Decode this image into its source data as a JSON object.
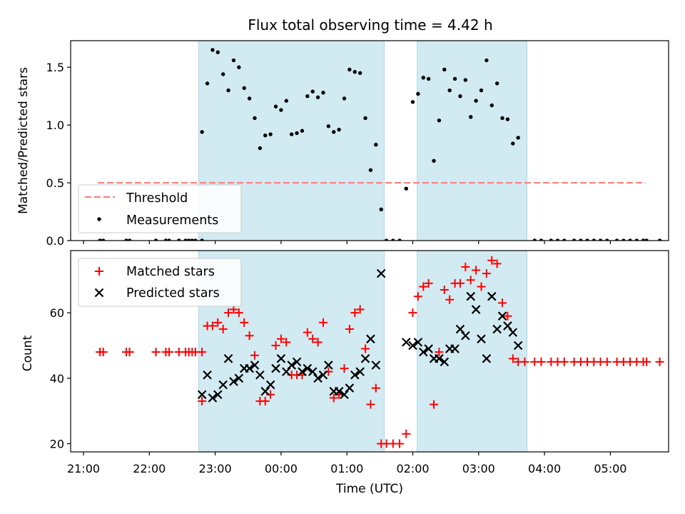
{
  "figure_title": "Flux total observing time = 4.42 h",
  "x_axis_label": "Time (UTC)",
  "x_tick_labels": [
    "21:00",
    "22:00",
    "23:00",
    "00:00",
    "01:00",
    "02:00",
    "03:00",
    "04:00",
    "05:00"
  ],
  "colors": {
    "shade": "#add8e6",
    "threshold": "#ff8080",
    "measurements": "#000000",
    "matched": "#ff0000",
    "predicted": "#000000"
  },
  "chart_data": [
    {
      "type": "scatter",
      "panel": "top",
      "ylabel": "Matched/Predicted stars",
      "ylim": [
        0,
        1.73
      ],
      "yticks": [
        0.0,
        0.5,
        1.0,
        1.5
      ],
      "ytick_labels": [
        "0.0",
        "0.5",
        "1.0",
        "1.5"
      ],
      "x_unit": "hours since 21:00 UTC",
      "shaded_intervals": [
        [
          "22:45",
          "01:34"
        ],
        [
          "02:04",
          "03:44"
        ]
      ],
      "threshold": {
        "name": "Threshold",
        "value": 0.5,
        "x_range": [
          "21:13",
          "05:32"
        ],
        "style": "dashed"
      },
      "legend_position": "lower-left",
      "series": [
        {
          "name": "Measurements",
          "points": [
            [
              0.25,
              0
            ],
            [
              0.3,
              0
            ],
            [
              0.65,
              0
            ],
            [
              0.7,
              0
            ],
            [
              1.1,
              0
            ],
            [
              1.25,
              0
            ],
            [
              1.3,
              0
            ],
            [
              1.45,
              0
            ],
            [
              1.55,
              0
            ],
            [
              1.6,
              0
            ],
            [
              1.65,
              0
            ],
            [
              1.7,
              0
            ],
            [
              1.8,
              0
            ],
            [
              1.8,
              0.94
            ],
            [
              1.88,
              1.36
            ],
            [
              1.96,
              1.65
            ],
            [
              2.04,
              1.63
            ],
            [
              2.12,
              1.44
            ],
            [
              2.2,
              1.3
            ],
            [
              2.28,
              1.56
            ],
            [
              2.36,
              1.5
            ],
            [
              2.44,
              1.32
            ],
            [
              2.52,
              1.23
            ],
            [
              2.6,
              1.06
            ],
            [
              2.68,
              0.8
            ],
            [
              2.76,
              0.91
            ],
            [
              2.84,
              0.92
            ],
            [
              2.92,
              1.16
            ],
            [
              3.0,
              1.13
            ],
            [
              3.08,
              1.21
            ],
            [
              3.16,
              0.92
            ],
            [
              3.24,
              0.93
            ],
            [
              3.32,
              0.95
            ],
            [
              3.4,
              1.25
            ],
            [
              3.48,
              1.29
            ],
            [
              3.56,
              1.24
            ],
            [
              3.64,
              1.28
            ],
            [
              3.72,
              0.99
            ],
            [
              3.8,
              0.94
            ],
            [
              3.88,
              0.96
            ],
            [
              3.96,
              1.23
            ],
            [
              4.04,
              1.48
            ],
            [
              4.12,
              1.46
            ],
            [
              4.2,
              1.45
            ],
            [
              4.28,
              1.06
            ],
            [
              4.36,
              0.61
            ],
            [
              4.44,
              0.83
            ],
            [
              4.52,
              0.27
            ],
            [
              4.6,
              0
            ],
            [
              4.7,
              0
            ],
            [
              4.8,
              0
            ],
            [
              4.9,
              0.45
            ],
            [
              5.0,
              1.2
            ],
            [
              5.08,
              1.27
            ],
            [
              5.16,
              1.41
            ],
            [
              5.24,
              1.4
            ],
            [
              5.32,
              0.69
            ],
            [
              5.4,
              1.04
            ],
            [
              5.48,
              1.48
            ],
            [
              5.56,
              1.3
            ],
            [
              5.64,
              1.4
            ],
            [
              5.72,
              1.25
            ],
            [
              5.8,
              1.39
            ],
            [
              5.88,
              1.07
            ],
            [
              5.96,
              1.21
            ],
            [
              6.04,
              1.3
            ],
            [
              6.12,
              1.56
            ],
            [
              6.2,
              1.17
            ],
            [
              6.28,
              1.36
            ],
            [
              6.36,
              1.06
            ],
            [
              6.44,
              1.05
            ],
            [
              6.52,
              0.84
            ],
            [
              6.6,
              0.89
            ],
            [
              6.85,
              0
            ],
            [
              6.95,
              0
            ],
            [
              7.1,
              0
            ],
            [
              7.2,
              0
            ],
            [
              7.3,
              0
            ],
            [
              7.45,
              0
            ],
            [
              7.55,
              0
            ],
            [
              7.65,
              0
            ],
            [
              7.75,
              0
            ],
            [
              7.85,
              0
            ],
            [
              7.95,
              0
            ],
            [
              8.1,
              0
            ],
            [
              8.2,
              0
            ],
            [
              8.3,
              0
            ],
            [
              8.4,
              0
            ],
            [
              8.5,
              0
            ],
            [
              8.55,
              0
            ],
            [
              8.75,
              0
            ]
          ]
        }
      ]
    },
    {
      "type": "scatter",
      "panel": "bottom",
      "ylabel": "Count",
      "ylim": [
        17.5,
        79
      ],
      "yticks": [
        20,
        40,
        60
      ],
      "ytick_labels": [
        "20",
        "40",
        "60"
      ],
      "x_unit": "hours since 21:00 UTC",
      "shaded_intervals": [
        [
          "22:45",
          "01:34"
        ],
        [
          "02:04",
          "03:44"
        ]
      ],
      "legend_position": "upper-left",
      "series": [
        {
          "name": "Matched stars",
          "marker": "plus",
          "points": [
            [
              0.25,
              48
            ],
            [
              0.3,
              48
            ],
            [
              0.65,
              48
            ],
            [
              0.7,
              48
            ],
            [
              1.1,
              48
            ],
            [
              1.25,
              48
            ],
            [
              1.3,
              48
            ],
            [
              1.45,
              48
            ],
            [
              1.55,
              48
            ],
            [
              1.6,
              48
            ],
            [
              1.65,
              48
            ],
            [
              1.7,
              48
            ],
            [
              1.8,
              48
            ],
            [
              1.8,
              33
            ],
            [
              1.88,
              56
            ],
            [
              1.96,
              56
            ],
            [
              2.04,
              57
            ],
            [
              2.12,
              55
            ],
            [
              2.2,
              60
            ],
            [
              2.28,
              61
            ],
            [
              2.36,
              60
            ],
            [
              2.44,
              57
            ],
            [
              2.52,
              53
            ],
            [
              2.6,
              47
            ],
            [
              2.68,
              33
            ],
            [
              2.76,
              33
            ],
            [
              2.84,
              35
            ],
            [
              2.92,
              50
            ],
            [
              3.0,
              52
            ],
            [
              3.08,
              51
            ],
            [
              3.16,
              41
            ],
            [
              3.24,
              41
            ],
            [
              3.32,
              41
            ],
            [
              3.4,
              54
            ],
            [
              3.48,
              52
            ],
            [
              3.56,
              51
            ],
            [
              3.64,
              57
            ],
            [
              3.72,
              42
            ],
            [
              3.8,
              34
            ],
            [
              3.88,
              35
            ],
            [
              3.96,
              43
            ],
            [
              4.04,
              55
            ],
            [
              4.12,
              60
            ],
            [
              4.2,
              61
            ],
            [
              4.28,
              49
            ],
            [
              4.36,
              32
            ],
            [
              4.44,
              37
            ],
            [
              4.52,
              20
            ],
            [
              4.6,
              20
            ],
            [
              4.7,
              20
            ],
            [
              4.8,
              20
            ],
            [
              4.9,
              23
            ],
            [
              5.0,
              60
            ],
            [
              5.08,
              65
            ],
            [
              5.16,
              68
            ],
            [
              5.24,
              69
            ],
            [
              5.32,
              32
            ],
            [
              5.4,
              48
            ],
            [
              5.48,
              67
            ],
            [
              5.56,
              64
            ],
            [
              5.64,
              69
            ],
            [
              5.72,
              69
            ],
            [
              5.8,
              74
            ],
            [
              5.88,
              70
            ],
            [
              5.96,
              73
            ],
            [
              6.04,
              68
            ],
            [
              6.12,
              72
            ],
            [
              6.2,
              76
            ],
            [
              6.28,
              75
            ],
            [
              6.36,
              63
            ],
            [
              6.44,
              59
            ],
            [
              6.52,
              46
            ],
            [
              6.6,
              45
            ],
            [
              6.7,
              45
            ],
            [
              6.85,
              45
            ],
            [
              6.95,
              45
            ],
            [
              7.1,
              45
            ],
            [
              7.2,
              45
            ],
            [
              7.3,
              45
            ],
            [
              7.45,
              45
            ],
            [
              7.55,
              45
            ],
            [
              7.65,
              45
            ],
            [
              7.75,
              45
            ],
            [
              7.85,
              45
            ],
            [
              7.95,
              45
            ],
            [
              8.1,
              45
            ],
            [
              8.2,
              45
            ],
            [
              8.3,
              45
            ],
            [
              8.4,
              45
            ],
            [
              8.5,
              45
            ],
            [
              8.55,
              45
            ],
            [
              8.75,
              45
            ]
          ]
        },
        {
          "name": "Predicted stars",
          "marker": "x",
          "points": [
            [
              1.8,
              35
            ],
            [
              1.88,
              41
            ],
            [
              1.96,
              34
            ],
            [
              2.04,
              35
            ],
            [
              2.12,
              38
            ],
            [
              2.2,
              46
            ],
            [
              2.28,
              39
            ],
            [
              2.36,
              40
            ],
            [
              2.44,
              43
            ],
            [
              2.52,
              43
            ],
            [
              2.6,
              44
            ],
            [
              2.68,
              41
            ],
            [
              2.76,
              36
            ],
            [
              2.84,
              38
            ],
            [
              2.92,
              43
            ],
            [
              3.0,
              46
            ],
            [
              3.08,
              42
            ],
            [
              3.16,
              44
            ],
            [
              3.24,
              45
            ],
            [
              3.32,
              42
            ],
            [
              3.4,
              43
            ],
            [
              3.48,
              42
            ],
            [
              3.56,
              40
            ],
            [
              3.64,
              41
            ],
            [
              3.72,
              44
            ],
            [
              3.8,
              36
            ],
            [
              3.88,
              36
            ],
            [
              3.96,
              35
            ],
            [
              4.04,
              37
            ],
            [
              4.12,
              41
            ],
            [
              4.2,
              42
            ],
            [
              4.28,
              46
            ],
            [
              4.36,
              52
            ],
            [
              4.44,
              44
            ],
            [
              4.52,
              72
            ],
            [
              4.9,
              51
            ],
            [
              5.0,
              50
            ],
            [
              5.08,
              51
            ],
            [
              5.16,
              48
            ],
            [
              5.24,
              49
            ],
            [
              5.32,
              46
            ],
            [
              5.4,
              46
            ],
            [
              5.48,
              45
            ],
            [
              5.56,
              49
            ],
            [
              5.64,
              49
            ],
            [
              5.72,
              55
            ],
            [
              5.8,
              53
            ],
            [
              5.88,
              65
            ],
            [
              5.96,
              61
            ],
            [
              6.04,
              52
            ],
            [
              6.12,
              46
            ],
            [
              6.2,
              65
            ],
            [
              6.28,
              55
            ],
            [
              6.36,
              59
            ],
            [
              6.44,
              56
            ],
            [
              6.52,
              54
            ],
            [
              6.6,
              50
            ]
          ]
        }
      ]
    }
  ]
}
